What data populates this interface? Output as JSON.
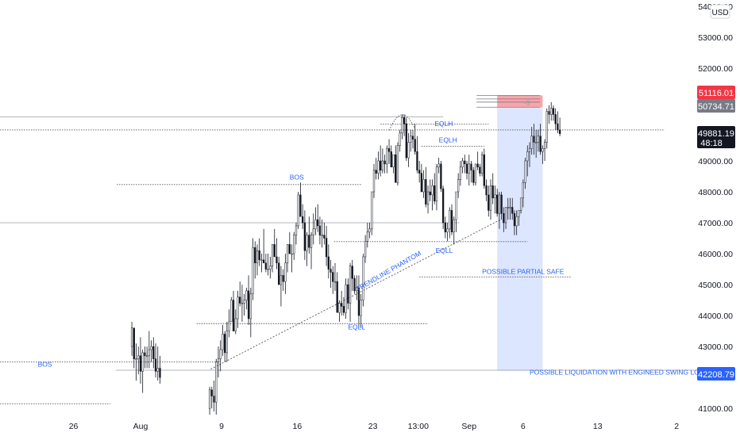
{
  "chart_data": {
    "type": "candlestick",
    "currency": "USD",
    "y_range": [
      40800,
      54200
    ],
    "y_ticks": [
      "54000.00",
      "53000.00",
      "52000.00",
      "51000.00",
      "50000.00",
      "49000.00",
      "48000.00",
      "47000.00",
      "46000.00",
      "45000.00",
      "44000.00",
      "43000.00",
      "42000.00",
      "41000.00"
    ],
    "x_ticks": [
      "26",
      "Aug",
      "9",
      "16",
      "23",
      "13:00",
      "Sep",
      "6",
      "13",
      "2"
    ],
    "x_tick_values": [
      -6.2,
      0,
      7.5,
      14.5,
      21.5,
      25.7,
      30.4,
      35.4,
      42.3,
      49.6
    ],
    "x_range": [
      -13,
      51.5
    ],
    "price_labels": {
      "target_high": "51116.01",
      "entry": "50734.71",
      "current": "49881.19",
      "countdown": "48:18",
      "target_low": "42208.79"
    },
    "price_label_colors": {
      "target_high": "#f23645",
      "entry": "#787b86",
      "current": "#131722",
      "target_low": "#2962ff"
    },
    "annotations": [
      {
        "text": "BOS",
        "x": -9.5,
        "y": 42350
      },
      {
        "text": "BOS",
        "x": 13.8,
        "y": 48400
      },
      {
        "text": "TRENDLINE PHANTOM",
        "x": 20.1,
        "y": 44780,
        "rotate": -30
      },
      {
        "text": "EQLL",
        "x": 19.2,
        "y": 43550
      },
      {
        "text": "EQLH",
        "x": 27.2,
        "y": 50120
      },
      {
        "text": "EQLH",
        "x": 27.6,
        "y": 49600
      },
      {
        "text": "EQLL",
        "x": 27.3,
        "y": 46030
      },
      {
        "text": "POSSIBLE PARTIAL SAFE",
        "x": 31.6,
        "y": 45350
      },
      {
        "text": "POSSIBLE LIQUIDATION WITH ENGINEED SWING LOW END",
        "x": 36.0,
        "y": 42100
      },
      {
        "text": "-5",
        "x": 35.5,
        "y": 50800
      }
    ],
    "levels": [
      {
        "y": 50425,
        "x1": -13,
        "x2": 28,
        "style": "solid"
      },
      {
        "y": 50000,
        "x1": -13,
        "x2": 48.5,
        "style": "dotted"
      },
      {
        "y": 48235,
        "x1": -2.2,
        "x2": 20.4,
        "style": "dotted"
      },
      {
        "y": 47000,
        "x1": -13,
        "x2": 29.5,
        "style": "solid"
      },
      {
        "y": 46390,
        "x1": 17.9,
        "x2": 35.8,
        "style": "dotted"
      },
      {
        "y": 45250,
        "x1": 25.8,
        "x2": 39.9,
        "style": "dotted"
      },
      {
        "y": 43740,
        "x1": 5.2,
        "x2": 26.6,
        "style": "dotted"
      },
      {
        "y": 42500,
        "x1": -13,
        "x2": 7.3,
        "style": "dotted"
      },
      {
        "y": 42235,
        "x1": -2.3,
        "x2": 51.5,
        "style": "solid"
      },
      {
        "y": 41150,
        "x1": -13,
        "x2": -2.8,
        "style": "dotted"
      },
      {
        "y": 50185,
        "x1": 22.2,
        "x2": 32.2,
        "style": "dotted"
      },
      {
        "y": 49470,
        "x1": 26.0,
        "x2": 31.8,
        "style": "dotted"
      }
    ],
    "trendline": {
      "x1": 6.5,
      "y1": 42270,
      "x2": 33.3,
      "y2": 47100
    },
    "position": {
      "x1": 33.0,
      "x2": 37.2,
      "entry": 50734,
      "target_high": 51116,
      "target_low": 42208
    },
    "candles": [
      [
        -0.8,
        43.0,
        43.8,
        42.7,
        43.6
      ],
      [
        -0.6,
        43.6,
        43.6,
        42.3,
        42.6
      ],
      [
        -0.4,
        42.6,
        43.1,
        41.9,
        42.6
      ],
      [
        -0.2,
        42.6,
        43.0,
        42.1,
        42.7
      ],
      [
        0.0,
        42.7,
        43.3,
        41.8,
        42.2
      ],
      [
        0.2,
        42.2,
        42.9,
        41.5,
        42.8
      ],
      [
        0.4,
        42.8,
        43.0,
        42.3,
        42.7
      ],
      [
        0.6,
        42.7,
        43.0,
        42.3,
        42.7
      ],
      [
        0.8,
        42.7,
        43.5,
        42.3,
        42.9
      ],
      [
        1.0,
        42.9,
        43.2,
        42.5,
        43.0
      ],
      [
        1.2,
        43.0,
        43.3,
        42.3,
        42.6
      ],
      [
        1.4,
        42.6,
        43.1,
        42.0,
        42.2
      ],
      [
        1.6,
        42.2,
        43.0,
        41.9,
        42.3
      ],
      [
        1.8,
        42.3,
        42.7,
        41.8,
        42.0
      ],
      [
        6.4,
        41.0,
        41.7,
        40.8,
        41.6
      ],
      [
        6.6,
        41.6,
        41.7,
        41.0,
        41.4
      ],
      [
        6.8,
        41.4,
        41.9,
        40.9,
        41.2
      ],
      [
        7.0,
        41.2,
        42.6,
        40.8,
        42.5
      ],
      [
        7.2,
        42.5,
        43.0,
        42.0,
        42.6
      ],
      [
        7.4,
        42.6,
        43.2,
        42.2,
        42.9
      ],
      [
        7.6,
        42.9,
        43.7,
        42.7,
        43.4
      ],
      [
        7.8,
        43.4,
        43.5,
        42.5,
        42.8
      ],
      [
        8.0,
        42.8,
        43.8,
        42.5,
        43.5
      ],
      [
        8.2,
        43.5,
        44.2,
        43.3,
        43.8
      ],
      [
        8.4,
        43.8,
        44.6,
        43.8,
        44.5
      ],
      [
        8.6,
        44.5,
        44.8,
        43.5,
        43.5
      ],
      [
        8.8,
        43.5,
        44.2,
        43.4,
        43.9
      ],
      [
        9.0,
        43.9,
        44.8,
        43.6,
        44.6
      ],
      [
        9.2,
        44.6,
        45.1,
        44.3,
        44.4
      ],
      [
        9.4,
        44.4,
        45.0,
        43.8,
        44.4
      ],
      [
        9.6,
        44.4,
        44.7,
        44.0,
        44.5
      ],
      [
        9.8,
        44.5,
        44.9,
        44.2,
        44.8
      ],
      [
        10.0,
        44.8,
        45.3,
        43.7,
        43.9
      ],
      [
        10.2,
        43.9,
        44.9,
        43.3,
        44.7
      ],
      [
        10.4,
        44.7,
        46.5,
        44.5,
        46.2
      ],
      [
        10.6,
        46.2,
        46.4,
        45.2,
        45.7
      ],
      [
        10.8,
        45.7,
        46.3,
        45.3,
        46.1
      ],
      [
        11.0,
        46.1,
        46.5,
        45.6,
        45.8
      ],
      [
        11.2,
        45.8,
        46.0,
        45.4,
        45.8
      ],
      [
        11.4,
        45.8,
        46.8,
        45.7,
        45.7
      ],
      [
        11.6,
        45.7,
        46.0,
        45.4,
        45.5
      ],
      [
        11.8,
        45.5,
        46.0,
        45.3,
        45.5
      ],
      [
        12.0,
        45.5,
        45.9,
        45.2,
        45.6
      ],
      [
        12.2,
        45.6,
        46.3,
        45.4,
        46.3
      ],
      [
        12.4,
        46.3,
        46.8,
        45.9,
        45.9
      ],
      [
        12.6,
        45.9,
        46.5,
        45.5,
        45.7
      ],
      [
        12.8,
        45.7,
        45.9,
        45.0,
        45.0
      ],
      [
        13.0,
        45.0,
        45.6,
        44.3,
        45.3
      ],
      [
        13.2,
        45.3,
        45.5,
        44.8,
        45.1
      ],
      [
        13.4,
        45.1,
        46.0,
        44.7,
        45.7
      ],
      [
        13.6,
        45.7,
        46.3,
        45.4,
        46.3
      ],
      [
        13.8,
        46.3,
        46.7,
        46.0,
        46.0
      ],
      [
        14.0,
        46.0,
        46.3,
        45.4,
        46.0
      ],
      [
        14.2,
        46.0,
        46.7,
        45.8,
        46.6
      ],
      [
        14.4,
        46.6,
        47.0,
        46.3,
        46.9
      ],
      [
        14.6,
        46.9,
        48.0,
        46.8,
        47.9
      ],
      [
        14.8,
        47.9,
        48.3,
        47.2,
        47.2
      ],
      [
        15.0,
        47.2,
        47.6,
        46.8,
        47.0
      ],
      [
        15.2,
        47.0,
        47.4,
        45.8,
        46.1
      ],
      [
        15.4,
        46.1,
        46.7,
        45.6,
        46.6
      ],
      [
        15.6,
        46.6,
        47.2,
        46.0,
        46.2
      ],
      [
        15.8,
        46.2,
        46.7,
        45.5,
        46.6
      ],
      [
        16.0,
        46.6,
        47.3,
        46.3,
        46.8
      ],
      [
        16.2,
        46.8,
        47.5,
        46.6,
        47.1
      ],
      [
        16.4,
        47.1,
        47.6,
        46.7,
        46.9
      ],
      [
        16.6,
        46.9,
        47.2,
        46.3,
        46.6
      ],
      [
        16.8,
        46.6,
        47.1,
        46.2,
        46.6
      ],
      [
        17.0,
        46.6,
        47.0,
        46.3,
        46.5
      ],
      [
        17.2,
        46.5,
        46.9,
        45.6,
        45.9
      ],
      [
        17.4,
        45.9,
        46.3,
        45.2,
        45.5
      ],
      [
        17.6,
        45.5,
        45.8,
        44.9,
        45.4
      ],
      [
        17.8,
        45.4,
        45.6,
        44.7,
        45.1
      ],
      [
        18.0,
        45.1,
        45.7,
        44.8,
        45.1
      ],
      [
        18.2,
        45.1,
        45.4,
        44.1,
        44.1
      ],
      [
        18.4,
        44.1,
        44.5,
        43.8,
        44.4
      ],
      [
        18.6,
        44.4,
        44.8,
        44.0,
        44.3
      ],
      [
        18.8,
        44.3,
        44.6,
        44.0,
        44.1
      ],
      [
        19.0,
        44.1,
        45.2,
        43.9,
        45.0
      ],
      [
        19.2,
        45.0,
        45.2,
        44.2,
        44.4
      ],
      [
        19.4,
        44.4,
        45.7,
        43.8,
        45.6
      ],
      [
        19.6,
        45.6,
        45.8,
        44.8,
        45.2
      ],
      [
        19.8,
        45.2,
        45.3,
        44.7,
        44.8
      ],
      [
        20.0,
        44.8,
        45.3,
        44.5,
        44.9
      ],
      [
        20.2,
        44.9,
        45.3,
        43.6,
        44.0
      ],
      [
        20.4,
        44.0,
        44.7,
        43.6,
        44.5
      ],
      [
        20.6,
        44.5,
        46.0,
        44.3,
        45.9
      ],
      [
        20.8,
        45.9,
        46.6,
        45.7,
        46.4
      ],
      [
        21.0,
        46.4,
        47.0,
        46.2,
        46.7
      ],
      [
        21.2,
        46.7,
        47.0,
        46.5,
        46.8
      ],
      [
        21.4,
        46.8,
        48.0,
        46.6,
        48.0
      ],
      [
        21.6,
        48.0,
        48.9,
        47.8,
        48.7
      ],
      [
        21.8,
        48.7,
        49.1,
        48.4,
        48.6
      ],
      [
        22.0,
        48.6,
        49.3,
        48.4,
        49.0
      ],
      [
        22.2,
        49.0,
        49.5,
        48.5,
        48.7
      ],
      [
        22.4,
        48.7,
        49.4,
        48.6,
        49.0
      ],
      [
        22.6,
        49.0,
        49.2,
        48.6,
        48.9
      ],
      [
        22.8,
        48.9,
        49.5,
        48.6,
        49.4
      ],
      [
        23.0,
        49.4,
        49.7,
        48.9,
        49.3
      ],
      [
        23.2,
        49.3,
        49.5,
        48.8,
        48.8
      ],
      [
        23.4,
        48.8,
        49.2,
        48.6,
        49.2
      ],
      [
        23.6,
        49.2,
        49.5,
        48.3,
        48.3
      ],
      [
        23.8,
        48.3,
        49.6,
        48.2,
        49.5
      ],
      [
        24.0,
        49.5,
        50.0,
        49.3,
        49.9
      ],
      [
        24.2,
        49.9,
        50.5,
        49.7,
        50.4
      ],
      [
        24.4,
        50.4,
        50.5,
        49.8,
        50.2
      ],
      [
        24.6,
        50.2,
        50.4,
        49.0,
        49.1
      ],
      [
        24.8,
        49.1,
        49.9,
        48.8,
        49.6
      ],
      [
        25.0,
        49.6,
        50.0,
        49.3,
        49.8
      ],
      [
        25.2,
        49.8,
        50.0,
        49.4,
        49.7
      ],
      [
        25.4,
        49.7,
        50.2,
        49.2,
        49.3
      ],
      [
        25.6,
        49.3,
        49.8,
        48.6,
        48.7
      ],
      [
        25.8,
        48.7,
        49.0,
        48.3,
        48.6
      ],
      [
        26.0,
        48.6,
        48.9,
        48.0,
        48.0
      ],
      [
        26.2,
        48.0,
        48.7,
        47.8,
        48.4
      ],
      [
        26.4,
        48.4,
        48.8,
        47.5,
        47.6
      ],
      [
        26.6,
        47.6,
        48.2,
        47.3,
        48.0
      ],
      [
        26.8,
        48.0,
        48.4,
        47.7,
        47.9
      ],
      [
        27.0,
        47.9,
        48.4,
        47.4,
        48.2
      ],
      [
        27.2,
        48.2,
        48.6,
        47.6,
        47.7
      ],
      [
        27.4,
        47.7,
        48.9,
        47.4,
        48.8
      ],
      [
        27.6,
        48.8,
        49.1,
        48.6,
        48.9
      ],
      [
        27.8,
        48.9,
        49.0,
        48.0,
        48.1
      ],
      [
        28.0,
        48.1,
        48.2,
        46.8,
        47.0
      ],
      [
        28.2,
        47.0,
        47.2,
        46.5,
        46.7
      ],
      [
        28.4,
        46.7,
        47.0,
        46.4,
        46.8
      ],
      [
        28.6,
        46.8,
        47.5,
        46.5,
        47.4
      ],
      [
        28.8,
        47.4,
        47.6,
        46.6,
        46.7
      ],
      [
        29.0,
        46.7,
        47.2,
        46.3,
        47.1
      ],
      [
        29.2,
        47.1,
        48.0,
        46.7,
        48.0
      ],
      [
        29.4,
        48.0,
        48.6,
        47.8,
        48.4
      ],
      [
        29.6,
        48.4,
        49.0,
        48.2,
        48.8
      ],
      [
        29.8,
        48.8,
        49.1,
        48.6,
        49.0
      ],
      [
        30.0,
        49.0,
        49.2,
        48.6,
        48.9
      ],
      [
        30.2,
        48.9,
        49.0,
        48.4,
        48.6
      ],
      [
        30.4,
        48.6,
        49.2,
        48.2,
        48.9
      ],
      [
        30.6,
        48.9,
        49.0,
        48.3,
        48.7
      ],
      [
        30.8,
        48.7,
        48.8,
        48.2,
        48.3
      ],
      [
        31.0,
        48.3,
        48.9,
        48.2,
        48.9
      ],
      [
        31.2,
        48.9,
        49.3,
        48.7,
        48.8
      ],
      [
        31.4,
        48.8,
        48.9,
        48.5,
        48.6
      ],
      [
        31.6,
        48.6,
        49.3,
        48.5,
        49.2
      ],
      [
        31.8,
        49.2,
        49.4,
        48.1,
        48.2
      ],
      [
        32.0,
        48.2,
        48.4,
        47.7,
        47.9
      ],
      [
        32.2,
        47.9,
        48.2,
        47.2,
        47.4
      ],
      [
        32.4,
        47.4,
        48.4,
        47.1,
        48.2
      ],
      [
        32.6,
        48.2,
        48.6,
        47.6,
        47.8
      ],
      [
        32.8,
        47.8,
        48.2,
        47.3,
        47.9
      ],
      [
        33.0,
        47.9,
        48.1,
        47.2,
        47.3
      ],
      [
        33.2,
        47.3,
        48.0,
        46.8,
        47.9
      ],
      [
        33.4,
        47.9,
        48.0,
        47.1,
        47.3
      ],
      [
        33.6,
        47.3,
        47.5,
        46.7,
        47.0
      ],
      [
        33.8,
        47.0,
        47.5,
        46.8,
        47.5
      ],
      [
        34.0,
        47.5,
        47.8,
        47.1,
        47.5
      ],
      [
        34.2,
        47.5,
        47.8,
        47.1,
        47.5
      ],
      [
        34.4,
        47.5,
        47.8,
        47.1,
        47.3
      ],
      [
        34.6,
        47.3,
        47.4,
        46.6,
        46.9
      ],
      [
        34.8,
        46.9,
        47.4,
        46.6,
        47.2
      ],
      [
        35.0,
        47.2,
        47.4,
        46.9,
        47.4
      ],
      [
        35.2,
        47.4,
        47.8,
        47.3,
        47.8
      ],
      [
        35.4,
        47.8,
        48.4,
        47.5,
        48.3
      ],
      [
        35.6,
        48.3,
        49.1,
        48.1,
        49.0
      ],
      [
        35.8,
        49.0,
        49.5,
        48.5,
        49.3
      ],
      [
        36.0,
        49.3,
        49.6,
        48.8,
        49.4
      ],
      [
        36.2,
        49.4,
        50.1,
        49.2,
        49.8
      ],
      [
        36.4,
        49.8,
        50.2,
        49.2,
        49.6
      ],
      [
        36.6,
        49.6,
        50.0,
        49.1,
        49.6
      ],
      [
        36.8,
        49.6,
        50.0,
        49.3,
        49.8
      ],
      [
        37.0,
        49.8,
        50.2,
        49.2,
        49.3
      ],
      [
        37.2,
        49.3,
        49.5,
        48.9,
        49.4
      ],
      [
        37.4,
        49.4,
        49.7,
        49.0,
        49.6
      ],
      [
        37.6,
        49.6,
        50.7,
        49.4,
        50.6
      ],
      [
        37.8,
        50.6,
        50.8,
        50.2,
        50.5
      ],
      [
        38.0,
        50.5,
        50.9,
        50.3,
        50.7
      ],
      [
        38.2,
        50.7,
        50.8,
        50.3,
        50.5
      ],
      [
        38.4,
        50.5,
        50.7,
        50.0,
        50.2
      ],
      [
        38.6,
        50.2,
        50.6,
        49.9,
        50.0
      ],
      [
        38.8,
        50.0,
        50.4,
        49.8,
        49.88
      ]
    ]
  }
}
